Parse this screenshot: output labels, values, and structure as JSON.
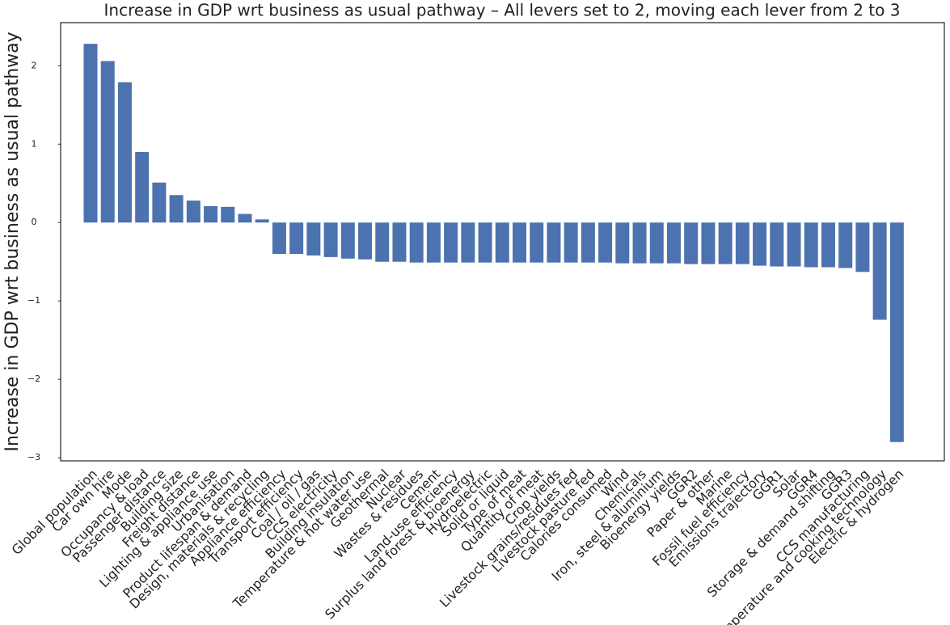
{
  "chart_data": {
    "type": "bar",
    "title": "Increase in GDP wrt business as usual pathway – All levers set to 2, moving each lever from 2 to 3",
    "ylabel": "Increase in GDP wrt business as usual pathway",
    "color": "#4c72b0",
    "categories": [
      "Global population",
      "Car own hire",
      "Mode",
      "Occupancy & load",
      "Passenger distance",
      "Building size",
      "Freight distance",
      "Lighting & appliance use",
      "Urbanisation",
      "Product lifespan & demand",
      "Design, materials & recycling",
      "Appliance efficiency",
      "Transport efficiency",
      "Coal / oil / gas",
      "CCS electricity",
      "Building insulation",
      "Temperature & hot water use",
      "Geothermal",
      "Nuclear",
      "Wastes & residues",
      "Cement",
      "Land-use efficiency",
      "Surplus land forest & bioenergy",
      "Hydroelectric",
      "Solid or liquid",
      "Type of meat",
      "Quantity of meat",
      "Crop yields",
      "Livestock grains/residues fed",
      "Livestock pasture fed",
      "Calories consumed",
      "Wind",
      "Chemicals",
      "Iron, steel & aluminium",
      "Bioenergy yields",
      "GGR2",
      "Paper & other",
      "Marine",
      "Fossil fuel efficiency",
      "Emissions trajectory",
      "GGR1",
      "Solar",
      "GGR4",
      "Storage & demand shifting",
      "GGR3",
      "CCS manufacturing",
      "Temperature and cooking technology",
      "Electric & hydrogen"
    ],
    "values": [
      2.28,
      2.06,
      1.79,
      0.9,
      0.51,
      0.35,
      0.28,
      0.21,
      0.2,
      0.11,
      0.04,
      -0.4,
      -0.4,
      -0.42,
      -0.44,
      -0.46,
      -0.47,
      -0.5,
      -0.5,
      -0.51,
      -0.51,
      -0.51,
      -0.51,
      -0.51,
      -0.51,
      -0.51,
      -0.51,
      -0.51,
      -0.51,
      -0.51,
      -0.51,
      -0.52,
      -0.52,
      -0.52,
      -0.52,
      -0.53,
      -0.53,
      -0.53,
      -0.53,
      -0.55,
      -0.56,
      -0.56,
      -0.57,
      -0.57,
      -0.58,
      -0.63,
      -1.24,
      -2.8
    ],
    "ylim": [
      -3.04,
      2.55
    ],
    "yticks": [
      {
        "value": -3,
        "label": "−3"
      },
      {
        "value": -2,
        "label": "−2"
      },
      {
        "value": -1,
        "label": "−1"
      },
      0,
      1,
      2
    ]
  }
}
